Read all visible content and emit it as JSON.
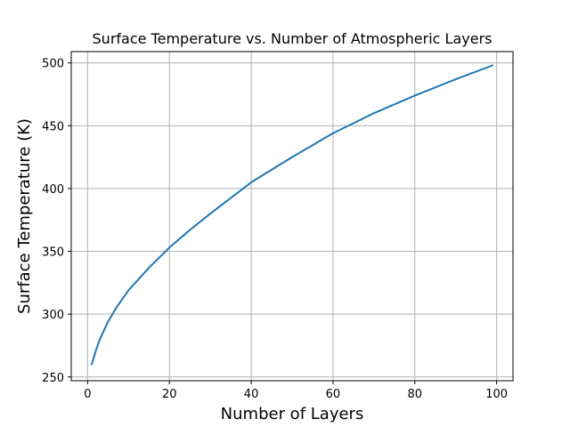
{
  "chart_data": {
    "type": "line",
    "title": "Surface Temperature vs. Number of Atmospheric Layers",
    "xlabel": "Number of Layers",
    "ylabel": "Surface Temperature (K)",
    "xlim": [
      -4,
      104
    ],
    "ylim": [
      247,
      509
    ],
    "xticks": [
      0,
      20,
      40,
      60,
      80,
      100
    ],
    "yticks": [
      250,
      300,
      350,
      400,
      450,
      500
    ],
    "grid": true,
    "series": [
      {
        "color": "#1f77b4",
        "x": [
          1,
          2,
          3,
          5,
          7,
          10,
          15,
          20,
          25,
          30,
          40,
          50,
          60,
          70,
          80,
          90,
          99
        ],
        "y": [
          260,
          271,
          280,
          294,
          305,
          319,
          337,
          353,
          367,
          380,
          405,
          425,
          444,
          460,
          474,
          487,
          498
        ]
      }
    ]
  }
}
